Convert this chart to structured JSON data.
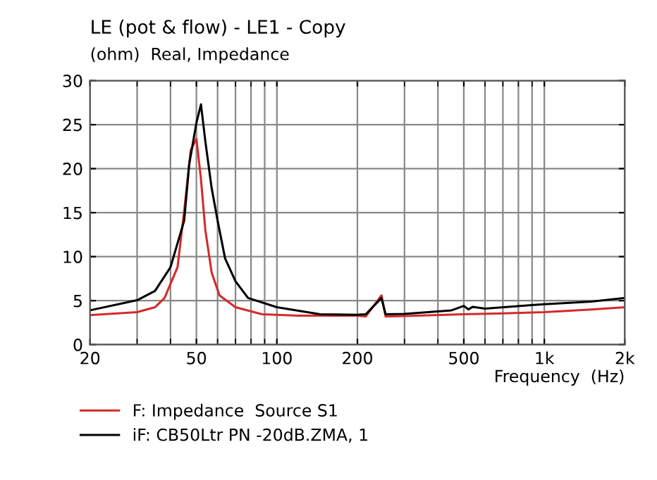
{
  "chart_data": {
    "type": "line",
    "title": "LE (pot & flow) - LE1 - Copy",
    "subtitle": "(ohm)  Real, Impedance",
    "xlabel": "Frequency  (Hz)",
    "log": "x",
    "xlim": [
      20,
      2000
    ],
    "ylim": [
      0,
      30
    ],
    "xticks": [
      20,
      50,
      100,
      200,
      500,
      {
        "value": 1000,
        "label": "1k"
      },
      {
        "value": 2000,
        "label": "2k"
      }
    ],
    "yticks": [
      0,
      5,
      10,
      15,
      20,
      25,
      30
    ],
    "grid": true,
    "legend": "bottom",
    "marker": "none",
    "line_style": "solid",
    "series": [
      {
        "name": "F: Impedance  Source S1",
        "color": "#d42a2a",
        "x": [
          20,
          30,
          35,
          38,
          42.5,
          45,
          47.6,
          50,
          52,
          54,
          57,
          61,
          70,
          88,
          120,
          200,
          215,
          246,
          255,
          300,
          500,
          700,
          1000,
          1500,
          2000
        ],
        "values": [
          3.35,
          3.7,
          4.25,
          5.3,
          8.8,
          15.2,
          22.1,
          23.4,
          18.8,
          13,
          8.2,
          5.6,
          4.25,
          3.45,
          3.3,
          3.3,
          3.2,
          5.6,
          3.2,
          3.25,
          3.45,
          3.55,
          3.7,
          4.0,
          4.25
        ]
      },
      {
        "name": "iF: CB50Ltr PN -20dB.ZMA, 1",
        "color": "#000000",
        "x": [
          20,
          30,
          35,
          40,
          45,
          47,
          50,
          52,
          54,
          57,
          60,
          64,
          70,
          78,
          100,
          145,
          200,
          215,
          246,
          255,
          300,
          450,
          500,
          520,
          540,
          600,
          1000,
          1500,
          2000
        ],
        "values": [
          3.9,
          5.05,
          6.1,
          8.8,
          14.1,
          20.5,
          25.2,
          27.3,
          23.1,
          17.8,
          14.1,
          9.8,
          7.2,
          5.3,
          4.25,
          3.45,
          3.4,
          3.45,
          5.3,
          3.45,
          3.5,
          3.9,
          4.4,
          4.0,
          4.3,
          4.1,
          4.6,
          4.9,
          5.3
        ]
      }
    ]
  }
}
